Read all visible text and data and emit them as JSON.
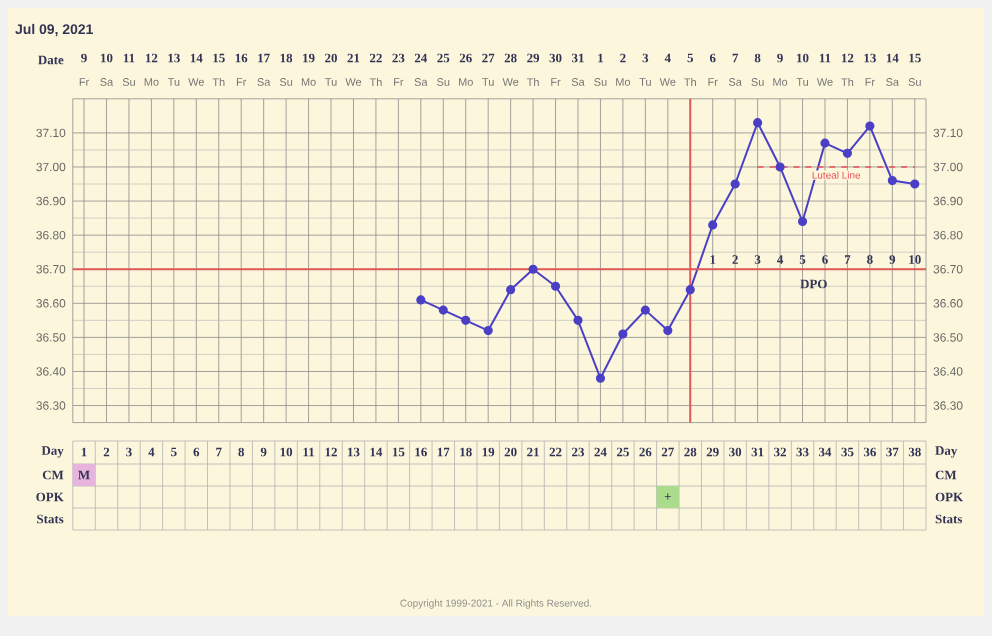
{
  "chart_data": {
    "type": "line",
    "title": "Jul 09, 2021",
    "xlabel": "Day",
    "x2label": "Date",
    "x": [
      16,
      17,
      18,
      19,
      20,
      21,
      22,
      23,
      24,
      25,
      26,
      27,
      28,
      29,
      30,
      31,
      32,
      33,
      34,
      35,
      36,
      37,
      38
    ],
    "xlim": [
      0.5,
      38.5
    ],
    "xticks": [
      1,
      2,
      3,
      4,
      5,
      6,
      7,
      8,
      9,
      10,
      11,
      12,
      13,
      14,
      15,
      16,
      17,
      18,
      19,
      20,
      21,
      22,
      23,
      24,
      25,
      26,
      27,
      28,
      29,
      30,
      31,
      32,
      33,
      34,
      35,
      36,
      37,
      38
    ],
    "ylim": [
      36.25,
      37.2
    ],
    "yticks": [
      {
        "value": 36.3,
        "label": "36.30"
      },
      {
        "value": 36.4,
        "label": "36.40"
      },
      {
        "value": 36.5,
        "label": "36.50"
      },
      {
        "value": 36.6,
        "label": "36.60"
      },
      {
        "value": 36.7,
        "label": "36.70"
      },
      {
        "value": 36.8,
        "label": "36.80"
      },
      {
        "value": 36.9,
        "label": "36.90"
      },
      {
        "value": 37.0,
        "label": "37.00"
      },
      {
        "value": 37.1,
        "label": "37.10"
      }
    ],
    "y2lim": [
      36.25,
      37.2
    ],
    "y2ticks": [
      {
        "value": 36.3,
        "label": "36.30"
      },
      {
        "value": 36.4,
        "label": "36.40"
      },
      {
        "value": 36.5,
        "label": "36.50"
      },
      {
        "value": 36.6,
        "label": "36.60"
      },
      {
        "value": 36.7,
        "label": "36.70"
      },
      {
        "value": 36.8,
        "label": "36.80"
      },
      {
        "value": 36.9,
        "label": "36.90"
      },
      {
        "value": 37.0,
        "label": "37.00"
      },
      {
        "value": 37.1,
        "label": "37.10"
      }
    ],
    "grid": true,
    "marker": "circle",
    "series": [
      {
        "color": "#4b3fc6",
        "values": [
          36.61,
          36.58,
          36.55,
          36.52,
          36.64,
          36.7,
          36.65,
          36.55,
          36.38,
          36.51,
          36.58,
          36.52,
          36.64,
          36.83,
          36.95,
          37.13,
          37.0,
          36.84,
          37.07,
          37.04,
          37.12,
          36.96,
          36.95
        ]
      },
      {
        "name": "Luteal Line",
        "type": "line",
        "x": [
          31,
          38
        ],
        "values": [
          37.0,
          37.0
        ],
        "color": "#e8505b",
        "line_style": "dashed",
        "marker": "none"
      }
    ],
    "ref_lines": [
      {
        "axis": "y",
        "value": 36.7,
        "color": "#e05a5a"
      },
      {
        "axis": "x",
        "value": 28,
        "color": "#e05a5a"
      }
    ],
    "annotations": [
      "9",
      "10",
      "11",
      "12",
      "13",
      "14",
      "15",
      "16",
      "17",
      "18",
      "19",
      "20",
      "21",
      "22",
      "23",
      "24",
      "25",
      "26",
      "27",
      "28",
      "29",
      "30",
      "31",
      "1",
      "2",
      "3",
      "4",
      "5",
      "6",
      "7",
      "8",
      "9",
      "10",
      "11",
      "12",
      "13",
      "14",
      "15",
      "Fr",
      "Sa",
      "Su",
      "Mo",
      "Tu",
      "We",
      "Th",
      "Fr",
      "Sa",
      "Su",
      "Mo",
      "Tu",
      "We",
      "Th",
      "Fr",
      "Sa",
      "Su",
      "Mo",
      "Tu",
      "We",
      "Th",
      "Fr",
      "Sa",
      "Su",
      "Mo",
      "Tu",
      "We",
      "Th",
      "Fr",
      "Sa",
      "Su",
      "Mo",
      "Tu",
      "We",
      "Th",
      "Fr",
      "Sa",
      "Su",
      "CM",
      "OPK",
      "Stats",
      "M",
      "+",
      "1",
      "2",
      "3",
      "4",
      "5",
      "6",
      "7",
      "8",
      "9",
      "10",
      "DPO",
      "Copyright 1999-2021 - All Rights Reserved."
    ]
  }
}
